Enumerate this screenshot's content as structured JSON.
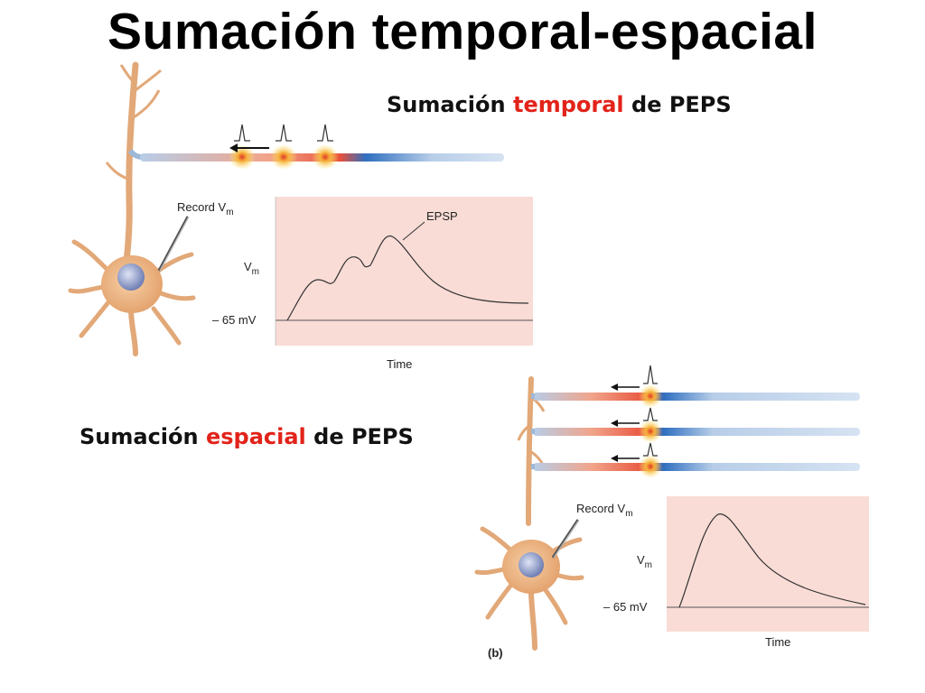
{
  "title": "Sumación temporal-espacial",
  "temporal_heading": {
    "pre": "Sumación ",
    "highlight": "temporal",
    "post": " de PEPS"
  },
  "spatial_heading": {
    "pre": "Sumación ",
    "highlight": "espacial",
    "post": " de PEPS"
  },
  "panel_a": {
    "record_label": "Record V",
    "record_sub": "m",
    "y_label": "V",
    "y_sub": "m",
    "baseline_label": "– 65 mV",
    "x_label": "Time",
    "annotation": "EPSP"
  },
  "panel_b": {
    "record_label": "Record V",
    "record_sub": "m",
    "y_label": "V",
    "y_sub": "m",
    "baseline_label": "– 65 mV",
    "x_label": "Time",
    "panel_label": "(b)"
  },
  "colors": {
    "accent": "#e2231a",
    "graph_bg": "#f9dcd6",
    "neuron": "#eab98a",
    "axon": "#a9c4e4",
    "soma_nucleus": "#8e9cc8"
  }
}
